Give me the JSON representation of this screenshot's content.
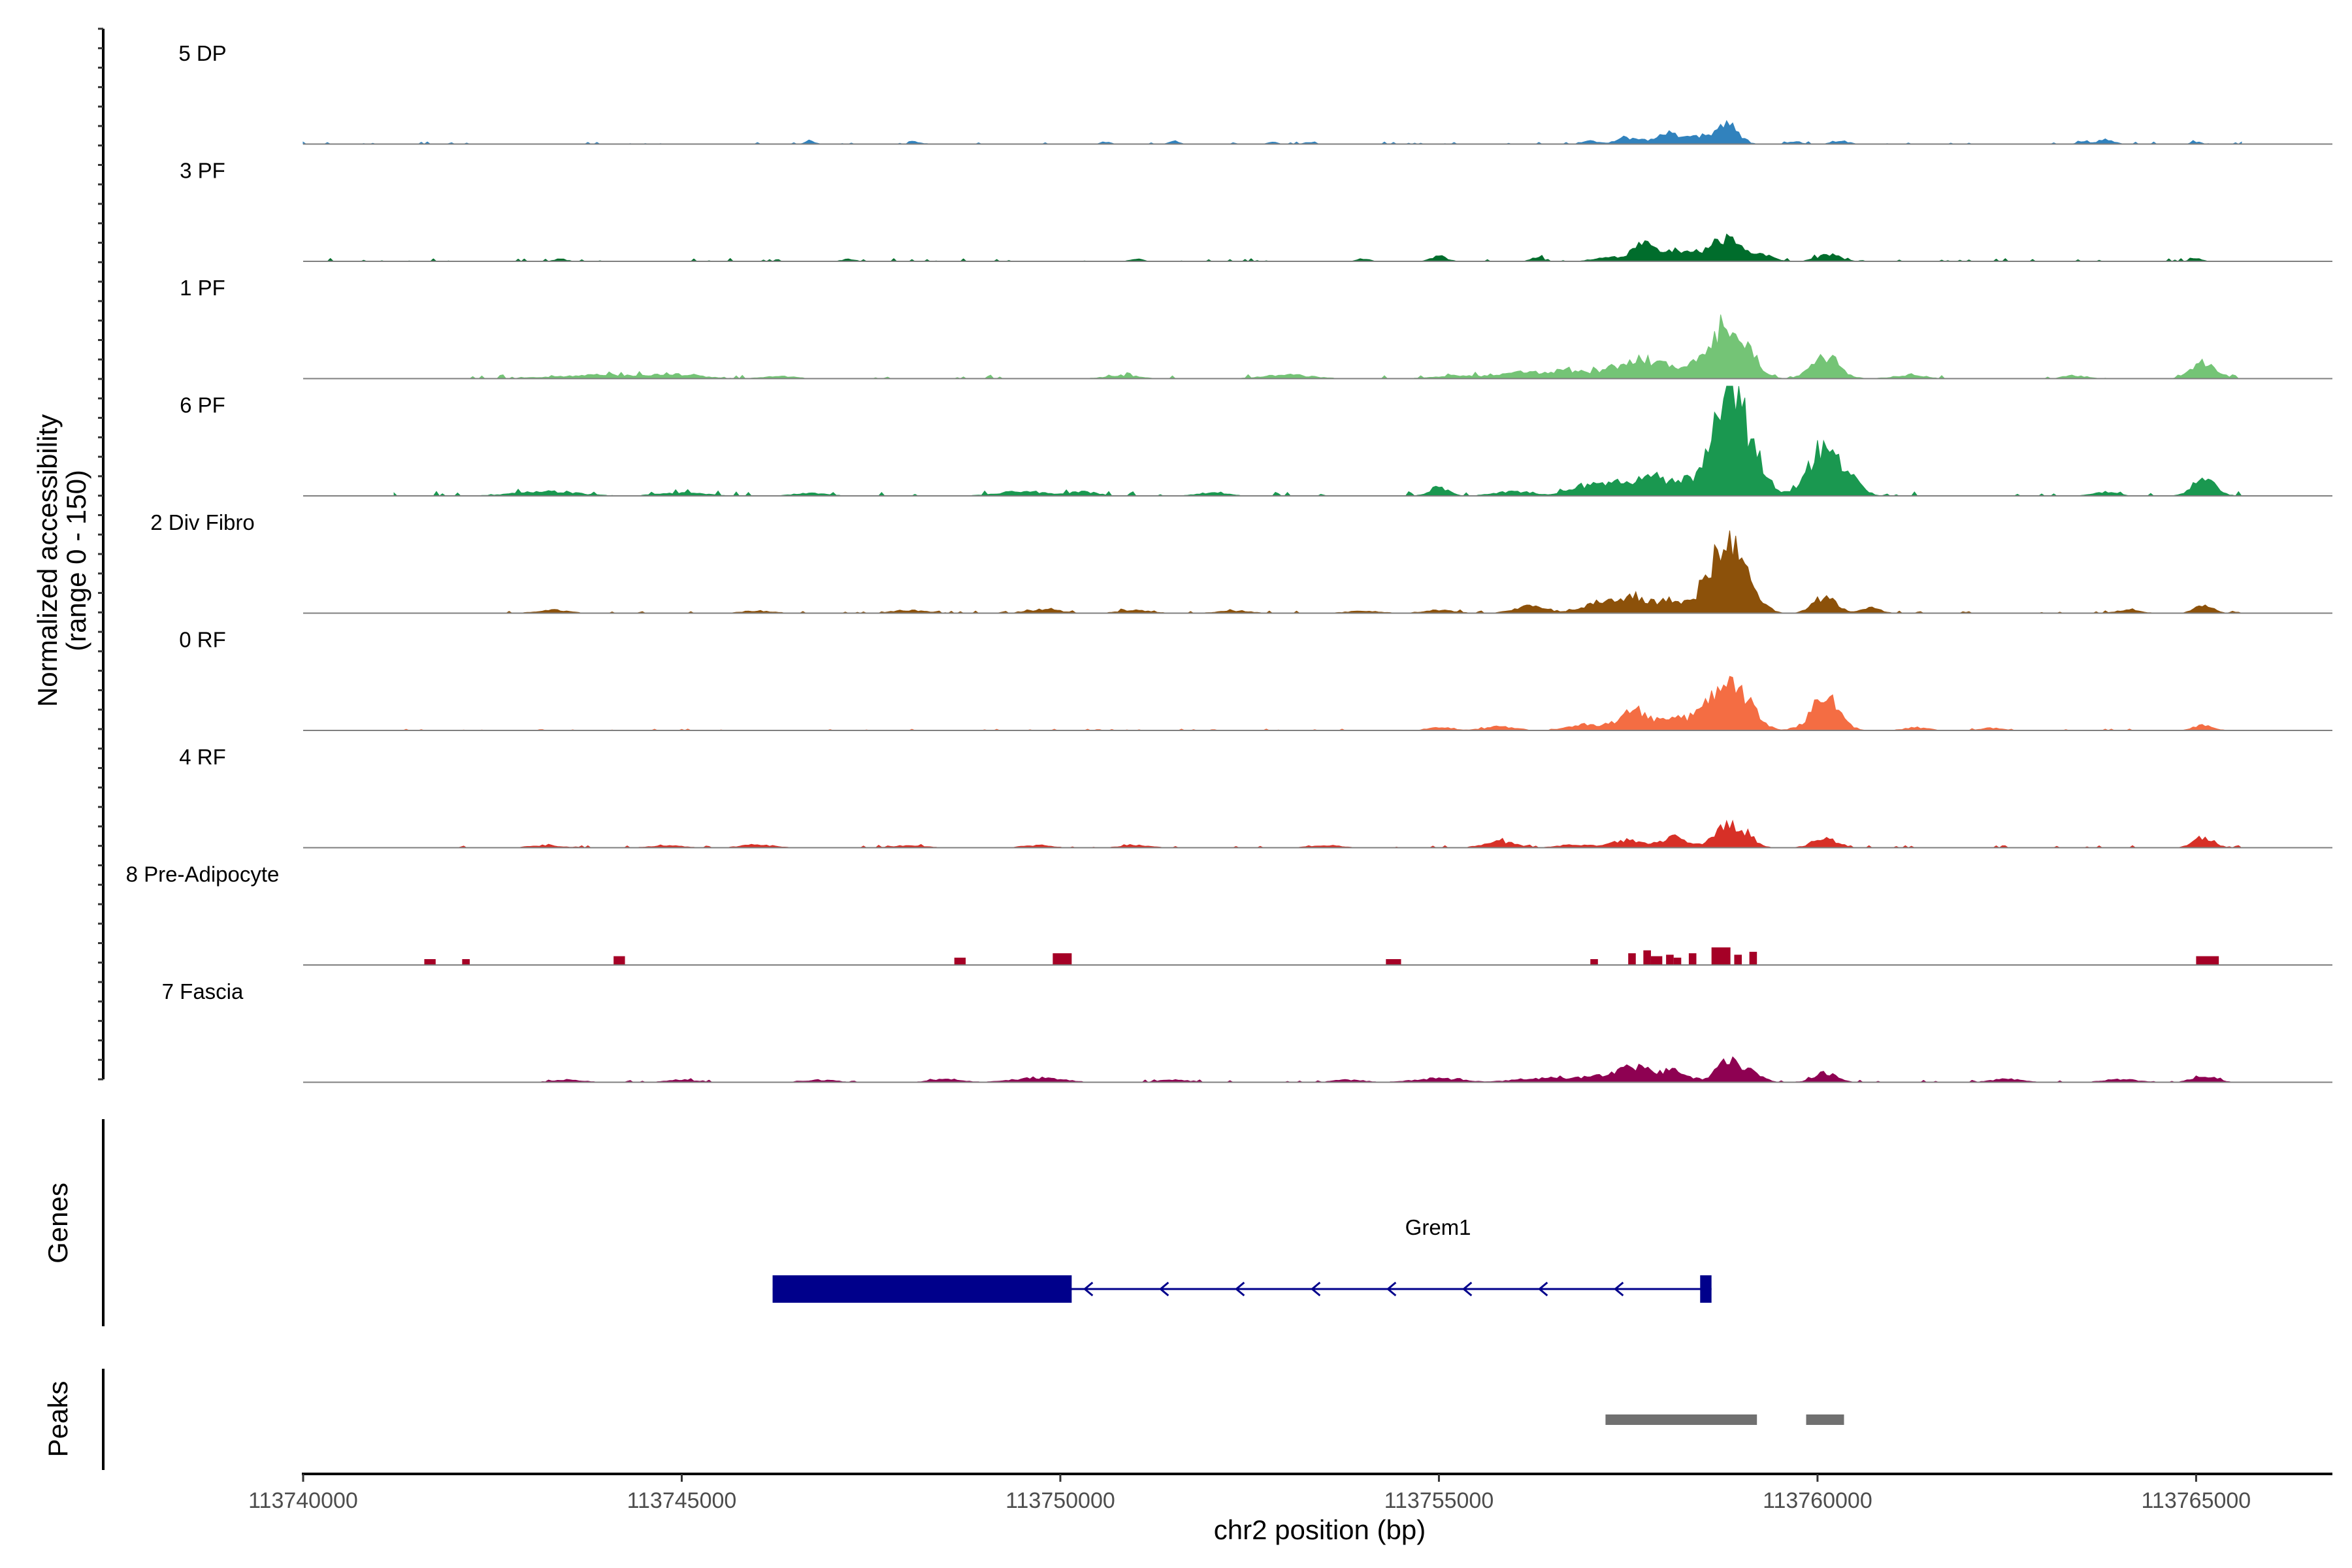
{
  "chart_data": {
    "type": "area",
    "title": "",
    "coverage": {
      "ylabel_line1": "Normalized accessibility",
      "ylabel_line2": "(range 0 - 150)",
      "ylim": [
        0,
        150
      ]
    },
    "xlabel": "chr2 position (bp)",
    "xlim": [
      113740000,
      113766800
    ],
    "x_ticks": [
      113740000,
      113745000,
      113750000,
      113755000,
      113760000,
      113765000
    ],
    "x_tick_labels": [
      "113740000",
      "113745000",
      "113750000",
      "113755000",
      "113760000",
      "113765000"
    ],
    "tracks": [
      {
        "name": "5 DP",
        "color": "#3182bd",
        "baseline": 2,
        "noise": 3,
        "extent": [
          113740000,
          113765600
        ],
        "peaks": [
          [
            113746700,
            4,
            60
          ],
          [
            113748100,
            3,
            60
          ],
          [
            113750600,
            3,
            60
          ],
          [
            113751500,
            4,
            60
          ],
          [
            113752800,
            3,
            60
          ],
          [
            113753300,
            3,
            60
          ],
          [
            113757000,
            4,
            100
          ],
          [
            113757500,
            8,
            150
          ],
          [
            113758000,
            14,
            150
          ],
          [
            113758400,
            10,
            120
          ],
          [
            113758800,
            28,
            140
          ],
          [
            113759700,
            3,
            80
          ],
          [
            113760300,
            4,
            100
          ],
          [
            113763500,
            3,
            60
          ],
          [
            113763800,
            6,
            100
          ],
          [
            113765000,
            3,
            60
          ]
        ]
      },
      {
        "name": "3 PF",
        "color": "#006d2c",
        "baseline": 3,
        "noise": 4,
        "extent": [
          113740000,
          113765600
        ],
        "peaks": [
          [
            113743400,
            3,
            80
          ],
          [
            113747200,
            3,
            80
          ],
          [
            113751000,
            3,
            80
          ],
          [
            113754000,
            3,
            80
          ],
          [
            113755000,
            7,
            100
          ],
          [
            113756300,
            5,
            80
          ],
          [
            113757200,
            6,
            150
          ],
          [
            113757700,
            24,
            150
          ],
          [
            113758100,
            14,
            120
          ],
          [
            113758400,
            8,
            110
          ],
          [
            113758800,
            32,
            200
          ],
          [
            113759300,
            8,
            120
          ],
          [
            113760150,
            9,
            150
          ],
          [
            113765000,
            4,
            80
          ]
        ]
      },
      {
        "name": "1 PF",
        "color": "#74c476",
        "baseline": 4,
        "noise": 5,
        "extent": [
          113741200,
          113765600
        ],
        "peaks": [
          [
            113744000,
            5,
            600
          ],
          [
            113745000,
            4,
            300
          ],
          [
            113746300,
            3,
            200
          ],
          [
            113750800,
            4,
            200
          ],
          [
            113753000,
            5,
            300
          ],
          [
            113755300,
            4,
            300
          ],
          [
            113756100,
            8,
            250
          ],
          [
            113756700,
            10,
            250
          ],
          [
            113757300,
            12,
            200
          ],
          [
            113757700,
            24,
            200
          ],
          [
            113758100,
            14,
            150
          ],
          [
            113758400,
            16,
            120
          ],
          [
            113758800,
            74,
            180
          ],
          [
            113759100,
            24,
            150
          ],
          [
            113760100,
            30,
            180
          ],
          [
            113761200,
            4,
            200
          ],
          [
            113763400,
            4,
            150
          ],
          [
            113765100,
            22,
            150
          ]
        ]
      },
      {
        "name": "6 PF",
        "color": "#1a9850",
        "baseline": 4,
        "noise": 6,
        "extent": [
          113741200,
          113765600
        ],
        "peaks": [
          [
            113743200,
            6,
            400
          ],
          [
            113745000,
            4,
            300
          ],
          [
            113746700,
            4,
            200
          ],
          [
            113749500,
            6,
            300
          ],
          [
            113750300,
            5,
            200
          ],
          [
            113752000,
            4,
            200
          ],
          [
            113755000,
            12,
            120
          ],
          [
            113756000,
            6,
            250
          ],
          [
            113756900,
            12,
            200
          ],
          [
            113757300,
            18,
            180
          ],
          [
            113757800,
            26,
            180
          ],
          [
            113758200,
            18,
            150
          ],
          [
            113758700,
            70,
            190
          ],
          [
            113758900,
            120,
            140
          ],
          [
            113759200,
            40,
            160
          ],
          [
            113760100,
            70,
            200
          ],
          [
            113760500,
            14,
            120
          ],
          [
            113763800,
            5,
            150
          ],
          [
            113765100,
            22,
            150
          ]
        ]
      },
      {
        "name": "2 Div Fibro",
        "color": "#8c510a",
        "baseline": 2,
        "noise": 3,
        "extent": [
          113741800,
          113765600
        ],
        "peaks": [
          [
            113743300,
            4,
            200
          ],
          [
            113746000,
            3,
            200
          ],
          [
            113748000,
            4,
            200
          ],
          [
            113749800,
            5,
            200
          ],
          [
            113751000,
            4,
            200
          ],
          [
            113752300,
            3,
            200
          ],
          [
            113754000,
            3,
            200
          ],
          [
            113755000,
            4,
            200
          ],
          [
            113756200,
            10,
            200
          ],
          [
            113757100,
            14,
            200
          ],
          [
            113757600,
            22,
            200
          ],
          [
            113758100,
            18,
            150
          ],
          [
            113758500,
            16,
            120
          ],
          [
            113758800,
            90,
            200
          ],
          [
            113759100,
            24,
            160
          ],
          [
            113760100,
            22,
            150
          ],
          [
            113760700,
            8,
            120
          ],
          [
            113764100,
            4,
            150
          ],
          [
            113765100,
            10,
            120
          ]
        ]
      },
      {
        "name": "0 RF",
        "color": "#f46d43",
        "baseline": 2,
        "noise": 2,
        "extent": [
          113741200,
          113765600
        ],
        "peaks": [
          [
            113755000,
            4,
            150
          ],
          [
            113755800,
            5,
            200
          ],
          [
            113757000,
            8,
            250
          ],
          [
            113757600,
            26,
            180
          ],
          [
            113758100,
            16,
            160
          ],
          [
            113758500,
            18,
            160
          ],
          [
            113758800,
            54,
            200
          ],
          [
            113759100,
            20,
            160
          ],
          [
            113760100,
            44,
            180
          ],
          [
            113761300,
            4,
            150
          ],
          [
            113762300,
            3,
            150
          ],
          [
            113765100,
            7,
            120
          ]
        ]
      },
      {
        "name": "4 RF",
        "color": "#d73027",
        "baseline": 2,
        "noise": 3,
        "extent": [
          113742000,
          113765600
        ],
        "peaks": [
          [
            113743200,
            3,
            200
          ],
          [
            113744800,
            3,
            200
          ],
          [
            113746000,
            4,
            200
          ],
          [
            113748000,
            3,
            200
          ],
          [
            113749700,
            3,
            200
          ],
          [
            113751000,
            3,
            200
          ],
          [
            113753500,
            3,
            200
          ],
          [
            113755800,
            8,
            200
          ],
          [
            113756800,
            4,
            200
          ],
          [
            113757500,
            10,
            200
          ],
          [
            113758100,
            14,
            160
          ],
          [
            113758800,
            30,
            170
          ],
          [
            113759100,
            10,
            120
          ],
          [
            113760100,
            12,
            160
          ],
          [
            113765100,
            14,
            130
          ]
        ]
      },
      {
        "name": "8 Pre-Adipocyte",
        "color": "#a50026",
        "baseline": 0,
        "noise": 0,
        "extent": [
          113740000,
          113765600
        ],
        "blocks": [
          [
            113741600,
            113741750,
            8
          ],
          [
            113742100,
            113742200,
            8
          ],
          [
            113744100,
            113744250,
            12
          ],
          [
            113748600,
            113748750,
            10
          ],
          [
            113749900,
            113750150,
            16
          ],
          [
            113754300,
            113754500,
            8
          ],
          [
            113757000,
            113757100,
            8
          ],
          [
            113757500,
            113757600,
            16
          ],
          [
            113757700,
            113757800,
            20
          ],
          [
            113757800,
            113757950,
            12
          ],
          [
            113758000,
            113758100,
            14
          ],
          [
            113758100,
            113758200,
            10
          ],
          [
            113758300,
            113758400,
            16
          ],
          [
            113758600,
            113758850,
            24
          ],
          [
            113758900,
            113759000,
            14
          ],
          [
            113759100,
            113759200,
            18
          ],
          [
            113765000,
            113765300,
            12
          ]
        ]
      },
      {
        "name": "7 Fascia",
        "color": "#8e0152",
        "baseline": 2,
        "noise": 3,
        "extent": [
          113742000,
          113765600
        ],
        "peaks": [
          [
            113743500,
            3,
            200
          ],
          [
            113745000,
            3,
            200
          ],
          [
            113746800,
            3,
            200
          ],
          [
            113748500,
            4,
            200
          ],
          [
            113749700,
            6,
            300
          ],
          [
            113751500,
            3,
            200
          ],
          [
            113753800,
            3,
            200
          ],
          [
            113755000,
            5,
            300
          ],
          [
            113756300,
            5,
            300
          ],
          [
            113757100,
            8,
            300
          ],
          [
            113757600,
            18,
            200
          ],
          [
            113758100,
            14,
            200
          ],
          [
            113758800,
            32,
            140
          ],
          [
            113759100,
            14,
            150
          ],
          [
            113760100,
            12,
            150
          ],
          [
            113762500,
            4,
            200
          ],
          [
            113764000,
            4,
            200
          ],
          [
            113765100,
            9,
            150
          ]
        ]
      }
    ],
    "genes_track": {
      "label": "Genes",
      "genes": [
        {
          "name": "Grem1",
          "strand": "-",
          "start": 113746200,
          "end": 113758600,
          "exons": [
            [
              113746200,
              113750150
            ],
            [
              113758450,
              113758600
            ]
          ]
        }
      ]
    },
    "peaks_track": {
      "label": "Peaks",
      "regions": [
        [
          113757200,
          113759200
        ],
        [
          113759850,
          113760350
        ]
      ]
    }
  }
}
